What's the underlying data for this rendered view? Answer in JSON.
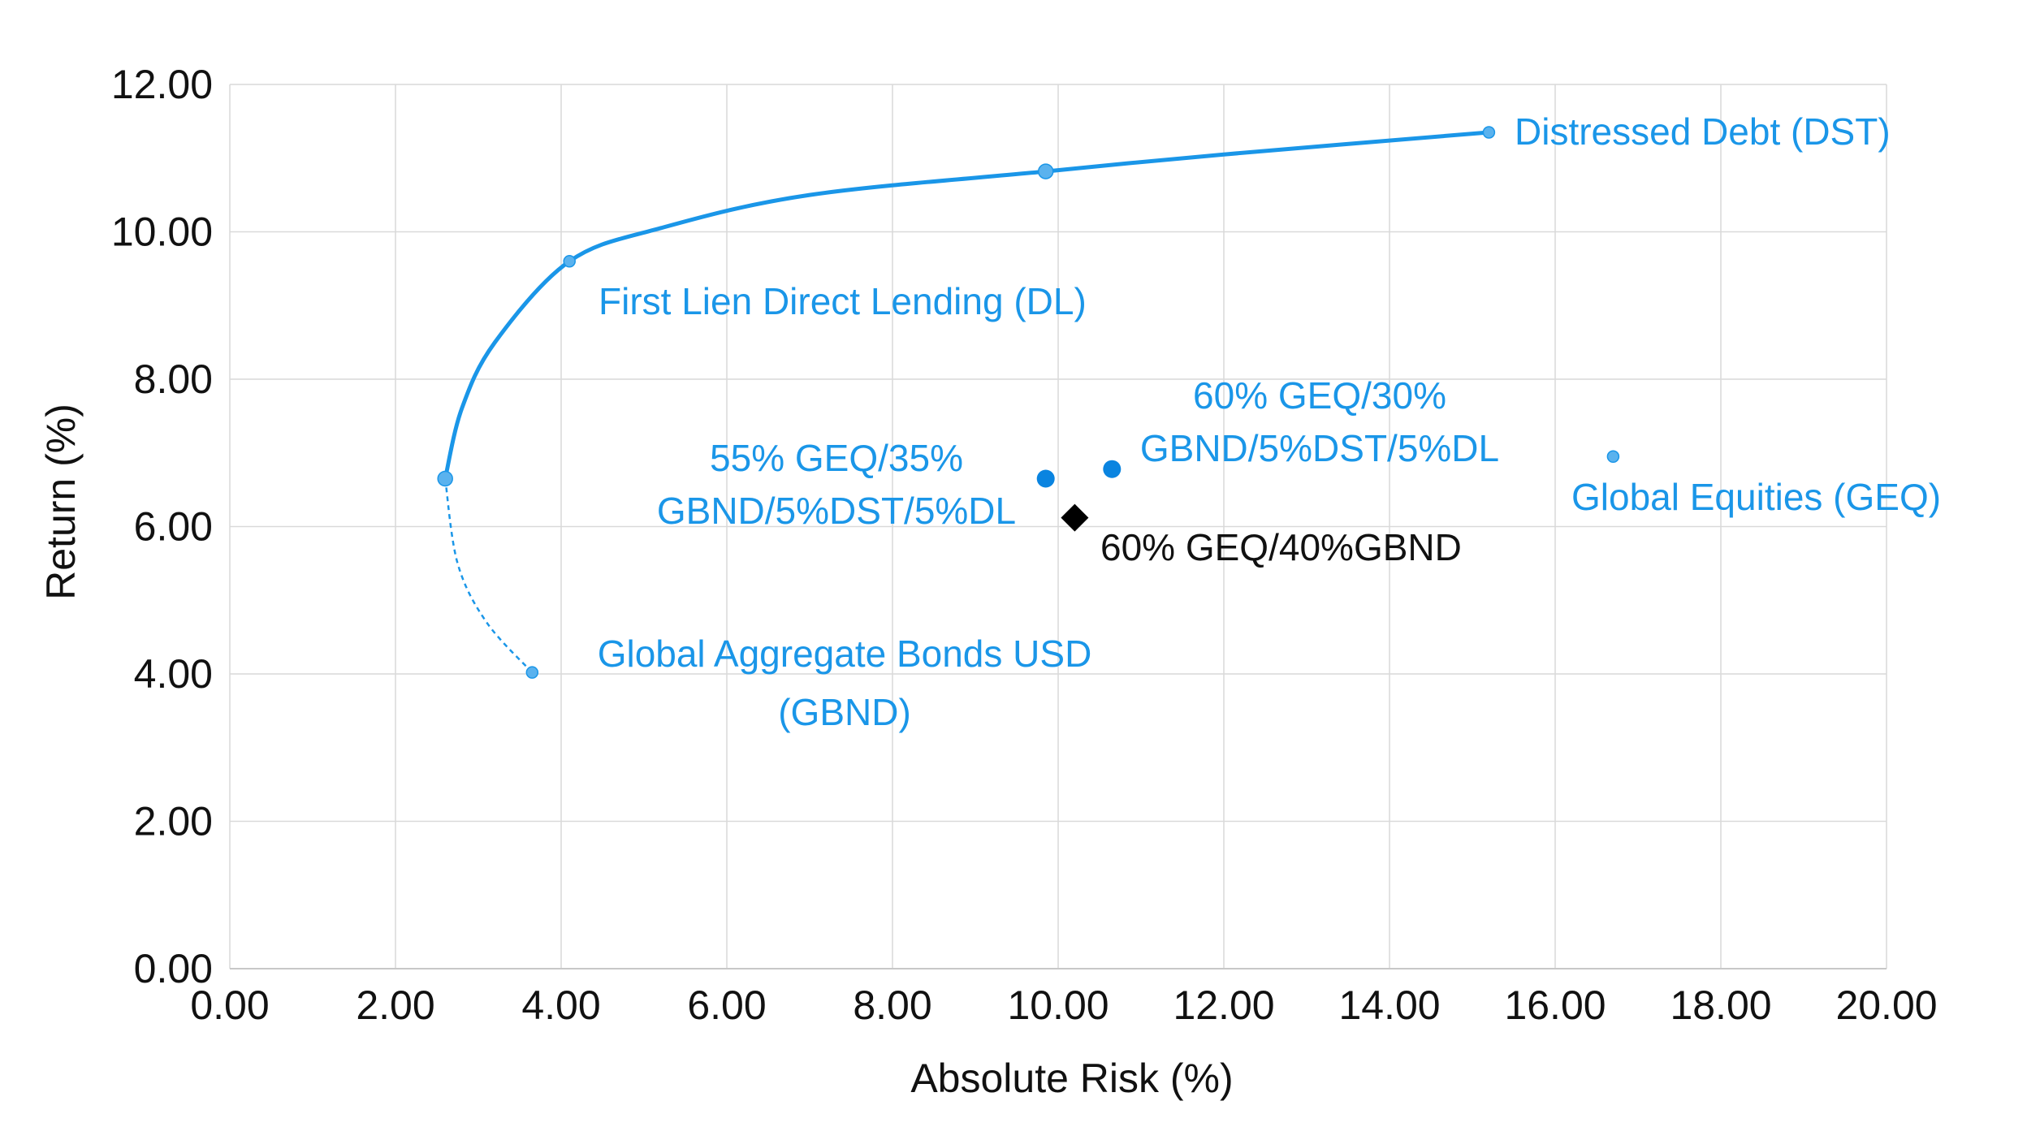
{
  "chart_data": {
    "type": "scatter",
    "xlabel": "Absolute Risk (%)",
    "ylabel": "Return (%)",
    "xlim": [
      0,
      20
    ],
    "ylim": [
      0,
      12
    ],
    "x_ticks": [
      "0.00",
      "2.00",
      "4.00",
      "6.00",
      "8.00",
      "10.00",
      "12.00",
      "14.00",
      "16.00",
      "18.00",
      "20.00"
    ],
    "y_ticks": [
      "0.00",
      "2.00",
      "4.00",
      "6.00",
      "8.00",
      "10.00",
      "12.00"
    ],
    "grid": true,
    "colors": {
      "accent": "#1a96e8",
      "black": "#000000",
      "grid": "#d9d9d9"
    },
    "efficient_frontier": {
      "solid": [
        [
          2.6,
          6.65
        ],
        [
          2.8,
          7.6
        ],
        [
          3.2,
          8.5
        ],
        [
          4.1,
          9.6
        ],
        [
          5.2,
          10.05
        ],
        [
          7.0,
          10.5
        ],
        [
          9.85,
          10.82
        ],
        [
          12.0,
          11.05
        ],
        [
          15.2,
          11.35
        ]
      ],
      "dashed": [
        [
          2.6,
          6.65
        ],
        [
          2.75,
          5.5
        ],
        [
          3.1,
          4.7
        ],
        [
          3.65,
          4.02
        ]
      ]
    },
    "points": [
      {
        "name": "Distressed Debt (DST)",
        "x": 15.2,
        "y": 11.35,
        "marker": "small-dot",
        "color": "#1a96e8"
      },
      {
        "name": "",
        "x": 9.85,
        "y": 10.82,
        "marker": "medium-dot",
        "color": "#1a96e8"
      },
      {
        "name": "First Lien Direct Lending (DL)",
        "x": 4.1,
        "y": 9.6,
        "marker": "small-dot",
        "color": "#1a96e8"
      },
      {
        "name": "",
        "x": 2.6,
        "y": 6.65,
        "marker": "medium-dot",
        "color": "#1a96e8"
      },
      {
        "name": "Global Aggregate Bonds USD (GBND)",
        "x": 3.65,
        "y": 4.02,
        "marker": "small-dot",
        "color": "#1a96e8"
      },
      {
        "name": "Global Equities (GEQ)",
        "x": 16.7,
        "y": 6.95,
        "marker": "small-dot",
        "color": "#1a96e8"
      },
      {
        "name": "55% GEQ/35% GBND/5%DST/5%DL",
        "x": 9.85,
        "y": 6.65,
        "marker": "large-dot",
        "color": "#0a84e0"
      },
      {
        "name": "60% GEQ/30% GBND/5%DST/5%DL",
        "x": 10.65,
        "y": 6.78,
        "marker": "large-dot",
        "color": "#0a84e0"
      },
      {
        "name": "60% GEQ/40%GBND",
        "x": 10.2,
        "y": 6.12,
        "marker": "diamond",
        "color": "#000000"
      }
    ],
    "annotations": [
      {
        "id": "dst",
        "lines": [
          "Distressed Debt (DST)"
        ],
        "color": "#1a96e8"
      },
      {
        "id": "dl",
        "lines": [
          "First Lien Direct Lending (DL)"
        ],
        "color": "#1a96e8"
      },
      {
        "id": "p60_30",
        "lines": [
          "60% GEQ/30%",
          "GBND/5%DST/5%DL"
        ],
        "color": "#1a96e8"
      },
      {
        "id": "p55_35",
        "lines": [
          "55% GEQ/35%",
          "GBND/5%DST/5%DL"
        ],
        "color": "#1a96e8"
      },
      {
        "id": "geq",
        "lines": [
          "Global Equities (GEQ)"
        ],
        "color": "#1a96e8"
      },
      {
        "id": "p60_40",
        "lines": [
          "60% GEQ/40%GBND"
        ],
        "color": "#111111"
      },
      {
        "id": "gbnd",
        "lines": [
          "Global Aggregate Bonds USD",
          "(GBND)"
        ],
        "color": "#1a96e8"
      }
    ]
  }
}
